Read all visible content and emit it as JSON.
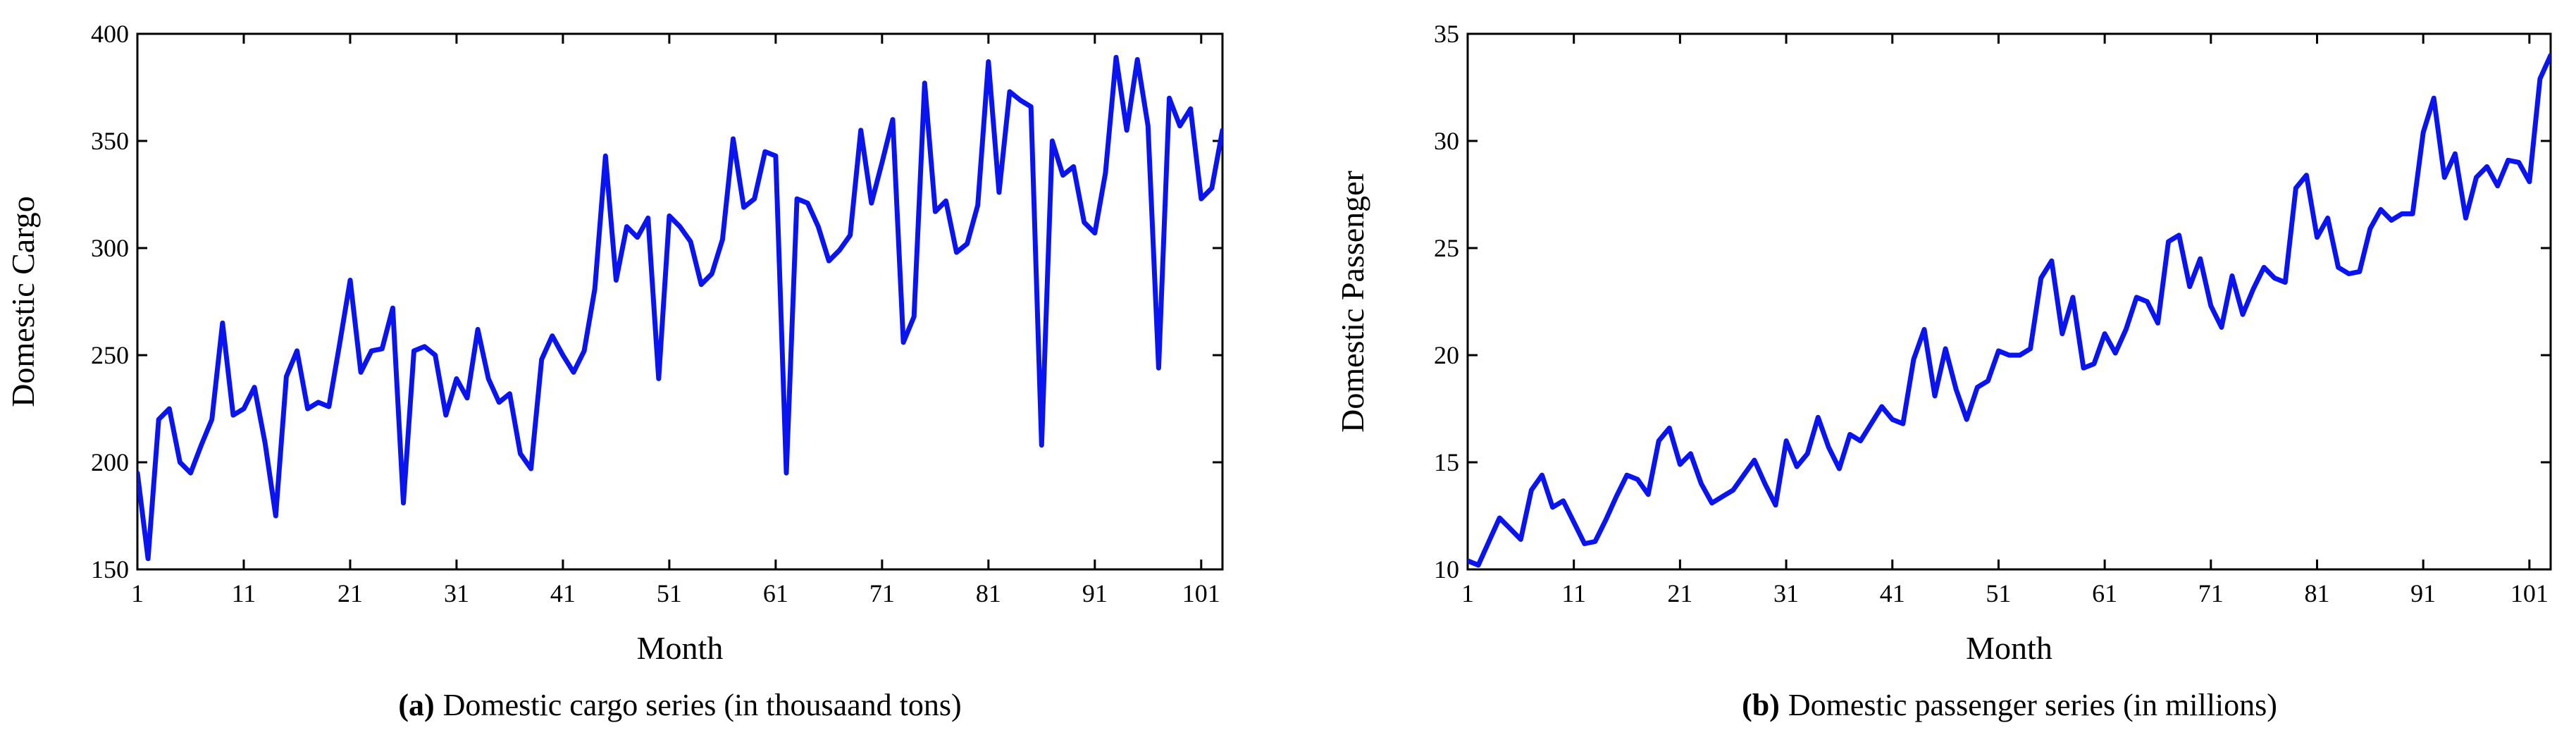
{
  "colors": {
    "line": "#0a14f0",
    "axis": "#000000",
    "background": "#ffffff"
  },
  "chart_data": [
    {
      "type": "line",
      "title": "",
      "caption_label": "(a)",
      "caption_text": "Domestic cargo series (in thousaand tons)",
      "xlabel": "Month",
      "ylabel": "Domestic Cargo",
      "xlim": [
        1,
        103
      ],
      "ylim": [
        150,
        400
      ],
      "xticks": [
        1,
        11,
        21,
        31,
        41,
        51,
        61,
        71,
        81,
        91,
        101
      ],
      "xtick_labels": [
        "1",
        "11",
        "21",
        "31",
        "41",
        "51",
        "61",
        "71",
        "81",
        "91",
        "101"
      ],
      "yticks": [
        150,
        200,
        250,
        300,
        350,
        400
      ],
      "ytick_labels": [
        "150",
        "200",
        "250",
        "300",
        "350",
        "400"
      ],
      "series": [
        {
          "name": "Domestic Cargo",
          "x": [
            1,
            2,
            3,
            4,
            5,
            6,
            7,
            8,
            9,
            10,
            11,
            12,
            13,
            14,
            15,
            16,
            17,
            18,
            19,
            20,
            21,
            22,
            23,
            24,
            25,
            26,
            27,
            28,
            29,
            30,
            31,
            32,
            33,
            34,
            35,
            36,
            37,
            38,
            39,
            40,
            41,
            42,
            43,
            44,
            45,
            46,
            47,
            48,
            49,
            50,
            51,
            52,
            53,
            54,
            55,
            56,
            57,
            58,
            59,
            60,
            61,
            62,
            63,
            64,
            65,
            66,
            67,
            68,
            69,
            70,
            71,
            72,
            73,
            74,
            75,
            76,
            77,
            78,
            79,
            80,
            81,
            82,
            83,
            84,
            85,
            86,
            87,
            88,
            89,
            90,
            91,
            92,
            93,
            94,
            95,
            96,
            97,
            98,
            99,
            100,
            101,
            102,
            103
          ],
          "values": [
            195,
            155,
            220,
            225,
            200,
            195,
            208,
            220,
            265,
            222,
            225,
            235,
            209,
            175,
            240,
            252,
            225,
            228,
            226,
            255,
            285,
            242,
            252,
            253,
            272,
            181,
            252,
            254,
            250,
            222,
            239,
            230,
            262,
            239,
            228,
            232,
            204,
            197,
            248,
            259,
            250,
            242,
            252,
            281,
            343,
            285,
            310,
            305,
            314,
            239,
            315,
            310,
            303,
            283,
            288,
            304,
            351,
            319,
            323,
            345,
            343,
            195,
            323,
            321,
            310,
            294,
            299,
            306,
            355,
            321,
            340,
            360,
            256,
            268,
            377,
            317,
            322,
            298,
            302,
            320,
            387,
            326,
            373,
            369,
            366,
            208,
            350,
            334,
            338,
            312,
            307,
            335,
            389,
            355,
            388,
            357,
            244,
            370,
            357,
            365,
            323,
            328,
            355
          ]
        }
      ]
    },
    {
      "type": "line",
      "title": "",
      "caption_label": "(b)",
      "caption_text": "Domestic passenger series (in millions)",
      "xlabel": "Month",
      "ylabel": "Domestic Passenger",
      "xlim": [
        1,
        103
      ],
      "ylim": [
        10,
        35
      ],
      "xticks": [
        1,
        11,
        21,
        31,
        41,
        51,
        61,
        71,
        81,
        91,
        101
      ],
      "xtick_labels": [
        "1",
        "11",
        "21",
        "31",
        "41",
        "51",
        "61",
        "71",
        "81",
        "91",
        "101"
      ],
      "yticks": [
        10,
        15,
        20,
        25,
        30,
        35
      ],
      "ytick_labels": [
        "10",
        "15",
        "20",
        "25",
        "30",
        "35"
      ],
      "series": [
        {
          "name": "Domestic Passenger",
          "x": [
            1,
            2,
            3,
            4,
            5,
            6,
            7,
            8,
            9,
            10,
            11,
            12,
            13,
            14,
            15,
            16,
            17,
            18,
            19,
            20,
            21,
            22,
            23,
            24,
            25,
            26,
            27,
            28,
            29,
            30,
            31,
            32,
            33,
            34,
            35,
            36,
            37,
            38,
            39,
            40,
            41,
            42,
            43,
            44,
            45,
            46,
            47,
            48,
            49,
            50,
            51,
            52,
            53,
            54,
            55,
            56,
            57,
            58,
            59,
            60,
            61,
            62,
            63,
            64,
            65,
            66,
            67,
            68,
            69,
            70,
            71,
            72,
            73,
            74,
            75,
            76,
            77,
            78,
            79,
            80,
            81,
            82,
            83,
            84,
            85,
            86,
            87,
            88,
            89,
            90,
            91,
            92,
            93,
            94,
            95,
            96,
            97,
            98,
            99,
            100,
            101,
            102,
            103
          ],
          "values": [
            10.4,
            10.2,
            11.3,
            12.4,
            11.9,
            11.4,
            13.7,
            14.4,
            12.9,
            13.2,
            12.2,
            11.2,
            11.3,
            12.3,
            13.4,
            14.4,
            14.2,
            13.5,
            16.0,
            16.6,
            14.9,
            15.4,
            14.0,
            13.1,
            13.4,
            13.7,
            14.4,
            15.1,
            14.0,
            13.0,
            16.0,
            14.8,
            15.4,
            17.1,
            15.7,
            14.7,
            16.3,
            16.0,
            16.8,
            17.6,
            17.0,
            16.8,
            19.8,
            21.2,
            18.1,
            20.3,
            18.4,
            17.0,
            18.5,
            18.8,
            20.2,
            20.0,
            20.0,
            20.3,
            23.6,
            24.4,
            21.0,
            22.7,
            19.4,
            19.6,
            21.0,
            20.1,
            21.2,
            22.7,
            22.5,
            21.5,
            25.3,
            25.6,
            23.2,
            24.5,
            22.3,
            21.3,
            23.7,
            21.9,
            23.1,
            24.1,
            23.6,
            23.4,
            27.8,
            28.4,
            25.5,
            26.4,
            24.1,
            23.8,
            23.9,
            25.9,
            26.8,
            26.3,
            26.6,
            26.6,
            30.4,
            32.0,
            28.3,
            29.4,
            26.4,
            28.3,
            28.8,
            27.9,
            29.1,
            29.0,
            28.1,
            32.9,
            34.0
          ]
        }
      ]
    }
  ]
}
